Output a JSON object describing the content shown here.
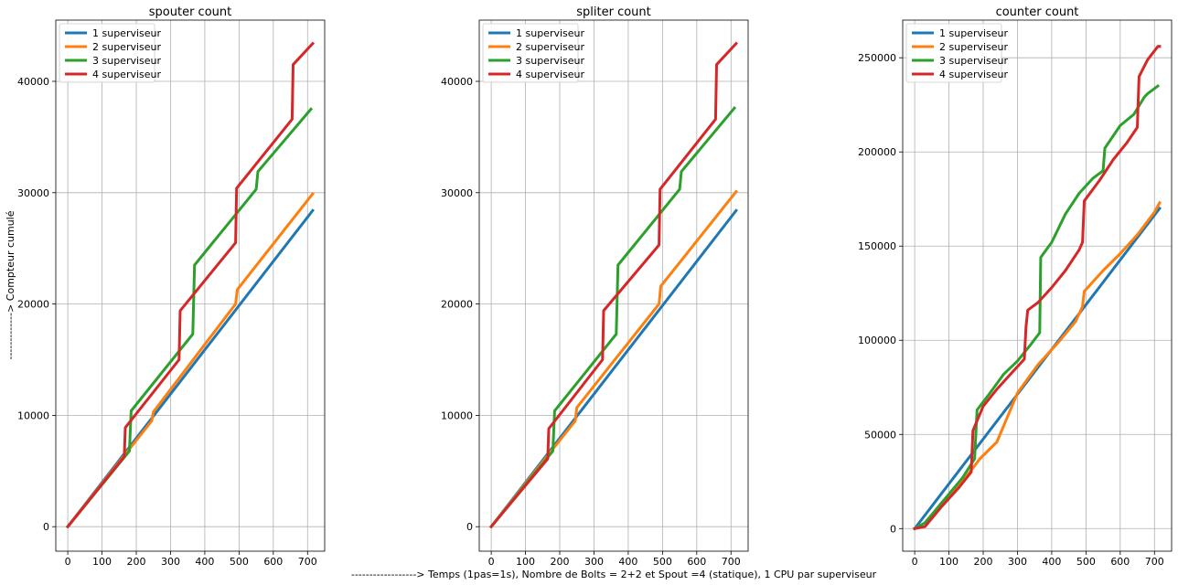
{
  "figure": {
    "xlabel": "------------------> Temps (1pas=1s), Nombre de Bolts = 2+2 et Spout =4 (statique), 1 CPU par superviseur",
    "ylabel": "-------------> Compteur cumulé"
  },
  "series_colors": [
    "#1f77b4",
    "#ff7f0e",
    "#2ca02c",
    "#d62728"
  ],
  "chart_data": [
    {
      "type": "line",
      "title": "spouter count",
      "xlim": [
        -35,
        750
      ],
      "ylim": [
        -2200,
        45500
      ],
      "xticks": [
        0,
        100,
        200,
        300,
        400,
        500,
        600,
        700
      ],
      "yticks": [
        0,
        10000,
        20000,
        30000,
        40000
      ],
      "grid": true,
      "legend": "top-left",
      "series": [
        {
          "name": "1 superviseur",
          "x": [
            0,
            715
          ],
          "y": [
            0,
            28400
          ]
        },
        {
          "name": "2 superviseur",
          "x": [
            0,
            245,
            250,
            490,
            495,
            715
          ],
          "y": [
            0,
            9500,
            10300,
            20000,
            21300,
            29900
          ]
        },
        {
          "name": "3 superviseur",
          "x": [
            0,
            180,
            185,
            365,
            370,
            550,
            555,
            710
          ],
          "y": [
            0,
            6800,
            10400,
            17300,
            23500,
            30300,
            31900,
            37500
          ]
        },
        {
          "name": "4 superviseur",
          "x": [
            0,
            165,
            168,
            325,
            328,
            490,
            493,
            655,
            658,
            715
          ],
          "y": [
            0,
            6300,
            8900,
            15000,
            19400,
            25500,
            30400,
            36600,
            41500,
            43400
          ]
        }
      ]
    },
    {
      "type": "line",
      "title": "spliter count",
      "xlim": [
        -35,
        750
      ],
      "ylim": [
        -2200,
        45500
      ],
      "xticks": [
        0,
        100,
        200,
        300,
        400,
        500,
        600,
        700
      ],
      "yticks": [
        0,
        10000,
        20000,
        30000,
        40000
      ],
      "grid": true,
      "legend": "top-left",
      "series": [
        {
          "name": "1 superviseur",
          "x": [
            0,
            715
          ],
          "y": [
            0,
            28400
          ]
        },
        {
          "name": "2 superviseur",
          "x": [
            0,
            245,
            250,
            490,
            495,
            715
          ],
          "y": [
            0,
            9500,
            10700,
            20000,
            21600,
            30100
          ]
        },
        {
          "name": "3 superviseur",
          "x": [
            0,
            180,
            185,
            365,
            370,
            550,
            555,
            710
          ],
          "y": [
            0,
            6800,
            10400,
            17300,
            23500,
            30300,
            31900,
            37600
          ]
        },
        {
          "name": "4 superviseur",
          "x": [
            0,
            165,
            168,
            325,
            328,
            490,
            493,
            655,
            658,
            715
          ],
          "y": [
            0,
            6100,
            8800,
            15000,
            19400,
            25300,
            30300,
            36600,
            41500,
            43400
          ]
        }
      ]
    },
    {
      "type": "line",
      "title": "counter count",
      "xlim": [
        -35,
        750
      ],
      "ylim": [
        -12000,
        270000
      ],
      "xticks": [
        0,
        100,
        200,
        300,
        400,
        500,
        600,
        700
      ],
      "yticks": [
        0,
        50000,
        100000,
        150000,
        200000,
        250000
      ],
      "grid": true,
      "legend": "top-left",
      "series": [
        {
          "name": "1 superviseur",
          "x": [
            0,
            715
          ],
          "y": [
            0,
            170000
          ]
        },
        {
          "name": "2 superviseur",
          "x": [
            0,
            30,
            80,
            140,
            190,
            240,
            300,
            360,
            420,
            470,
            490,
            495,
            550,
            600,
            650,
            700,
            715
          ],
          "y": [
            0,
            3000,
            14000,
            25000,
            37000,
            46000,
            72000,
            87000,
            99000,
            110000,
            118000,
            126000,
            137000,
            146000,
            156000,
            168000,
            173000
          ]
        },
        {
          "name": "3 superviseur",
          "x": [
            0,
            30,
            80,
            140,
            175,
            182,
            220,
            260,
            300,
            340,
            365,
            368,
            400,
            440,
            480,
            520,
            550,
            555,
            600,
            640,
            670,
            680,
            710
          ],
          "y": [
            0,
            3000,
            14000,
            27000,
            37000,
            63000,
            72000,
            82000,
            89000,
            98000,
            104000,
            144000,
            152000,
            167000,
            178000,
            186000,
            190000,
            202000,
            214000,
            220000,
            229000,
            231000,
            235000
          ]
        },
        {
          "name": "4 superviseur",
          "x": [
            0,
            30,
            80,
            130,
            165,
            170,
            200,
            240,
            280,
            320,
            325,
            330,
            360,
            400,
            440,
            480,
            490,
            495,
            540,
            580,
            620,
            650,
            655,
            680,
            710,
            715
          ],
          "y": [
            0,
            1000,
            12000,
            22000,
            30000,
            52000,
            65000,
            74000,
            82000,
            90000,
            107000,
            116000,
            120000,
            128000,
            137000,
            148000,
            152000,
            174000,
            185000,
            196000,
            205000,
            213000,
            240000,
            249000,
            256000,
            256000
          ]
        }
      ]
    }
  ]
}
